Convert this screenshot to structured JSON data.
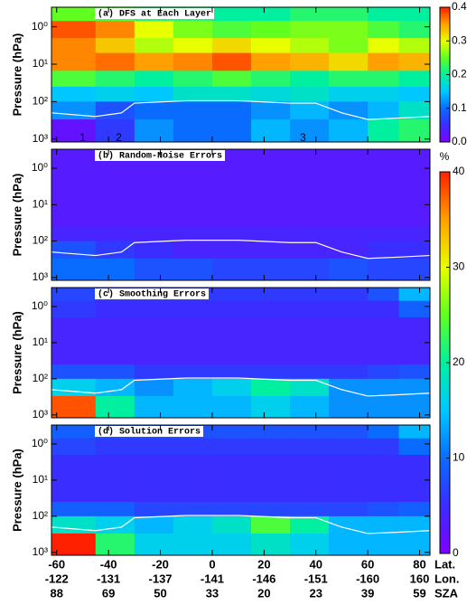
{
  "chart_data": [
    {
      "type": "heatmap",
      "title": "(a) DFS at Each Layer",
      "ylabel": "Pressure (hPa)",
      "log_y": true,
      "ylim": [
        1200,
        0.3
      ],
      "yticks": [
        {
          "value": 1,
          "label": "10⁰"
        },
        {
          "value": 10,
          "label": "10¹"
        },
        {
          "value": 100,
          "label": "10²"
        },
        {
          "value": 1000,
          "label": "10³"
        }
      ],
      "zlim": [
        0,
        0.4
      ],
      "x_edges": [
        -62,
        -45,
        -30,
        -15,
        0,
        15,
        30,
        45,
        60,
        72,
        84
      ],
      "y_edges": [
        0.3,
        0.7,
        2,
        5,
        15,
        40,
        100,
        300,
        1200
      ],
      "values": [
        [
          0.25,
          0.24,
          0.22,
          0.22,
          0.2,
          0.2,
          0.22,
          0.22,
          0.2,
          0.2
        ],
        [
          0.38,
          0.36,
          0.3,
          0.26,
          0.24,
          0.25,
          0.26,
          0.26,
          0.24,
          0.22
        ],
        [
          0.36,
          0.33,
          0.28,
          0.3,
          0.32,
          0.3,
          0.28,
          0.26,
          0.3,
          0.28
        ],
        [
          0.36,
          0.37,
          0.35,
          0.36,
          0.38,
          0.35,
          0.34,
          0.32,
          0.35,
          0.34
        ],
        [
          0.24,
          0.22,
          0.2,
          0.22,
          0.24,
          0.22,
          0.2,
          0.22,
          0.22,
          0.2
        ],
        [
          0.15,
          0.16,
          0.15,
          0.18,
          0.18,
          0.17,
          0.18,
          0.16,
          0.16,
          0.15
        ],
        [
          0.12,
          0.08,
          0.1,
          0.1,
          0.1,
          0.12,
          0.14,
          0.12,
          0.14,
          0.18
        ],
        [
          0.02,
          0.06,
          0.12,
          0.1,
          0.1,
          0.14,
          0.12,
          0.14,
          0.2,
          0.22
        ]
      ],
      "line": {
        "color": "#ffffff",
        "x": [
          -62,
          -45,
          -35,
          -30,
          -10,
          10,
          30,
          40,
          50,
          60,
          70,
          84
        ],
        "values": [
          200,
          250,
          200,
          110,
          95,
          95,
          110,
          110,
          200,
          300,
          280,
          250
        ]
      },
      "annotations": [
        {
          "text": "1",
          "x": -50,
          "y": 950
        },
        {
          "text": "2",
          "x": -36,
          "y": 950
        },
        {
          "text": "3",
          "x": 35,
          "y": 950
        }
      ],
      "colorbar": {
        "zticks": [
          {
            "value": 0,
            "label": "0.0"
          },
          {
            "value": 0.1,
            "label": "0.1"
          },
          {
            "value": 0.2,
            "label": "0.2"
          },
          {
            "value": 0.3,
            "label": "0.3"
          },
          {
            "value": 0.4,
            "label": "0.4"
          }
        ]
      }
    },
    {
      "type": "heatmap",
      "title": "(b) Random-Noise Errors",
      "ylabel": "Pressure (hPa)",
      "log_y": true,
      "ylim": [
        1200,
        0.3
      ],
      "yticks": [
        {
          "value": 1,
          "label": "10⁰"
        },
        {
          "value": 10,
          "label": "10¹"
        },
        {
          "value": 100,
          "label": "10²"
        },
        {
          "value": 1000,
          "label": "10³"
        }
      ],
      "zlim": [
        0,
        40
      ],
      "x_edges": [
        -62,
        -45,
        -30,
        -15,
        0,
        15,
        30,
        45,
        60,
        72,
        84
      ],
      "y_edges": [
        0.3,
        0.7,
        2,
        5,
        15,
        40,
        100,
        300,
        1200
      ],
      "values": [
        [
          3,
          3,
          3,
          3,
          3,
          3,
          3,
          3,
          3,
          3
        ],
        [
          3,
          3,
          3,
          3,
          3,
          3,
          3,
          3,
          3,
          3
        ],
        [
          3,
          3,
          3,
          3,
          3,
          3,
          3,
          3,
          3,
          3
        ],
        [
          3,
          3,
          3,
          3,
          3,
          3,
          3,
          3,
          3,
          3
        ],
        [
          3,
          3,
          3,
          3,
          3,
          3,
          3,
          3,
          3,
          3
        ],
        [
          4,
          4,
          4,
          4,
          4,
          4,
          4,
          4,
          4,
          4
        ],
        [
          8,
          6,
          5,
          4,
          4,
          4,
          4,
          4,
          5,
          5
        ],
        [
          10,
          10,
          8,
          8,
          7,
          7,
          7,
          8,
          7,
          7
        ]
      ],
      "line": {
        "color": "#ffffff",
        "x": [
          -62,
          -45,
          -35,
          -30,
          -10,
          10,
          30,
          40,
          50,
          60,
          70,
          84
        ],
        "values": [
          200,
          250,
          200,
          110,
          95,
          95,
          110,
          110,
          200,
          300,
          280,
          250
        ]
      }
    },
    {
      "type": "heatmap",
      "title": "(c) Smoothing Errors",
      "ylabel": "Pressure (hPa)",
      "log_y": true,
      "ylim": [
        1200,
        0.3
      ],
      "yticks": [
        {
          "value": 1,
          "label": "10⁰"
        },
        {
          "value": 10,
          "label": "10¹"
        },
        {
          "value": 100,
          "label": "10²"
        },
        {
          "value": 1000,
          "label": "10³"
        }
      ],
      "zlim": [
        0,
        40
      ],
      "x_edges": [
        -62,
        -45,
        -30,
        -15,
        0,
        15,
        30,
        45,
        60,
        72,
        84
      ],
      "y_edges": [
        0.3,
        0.7,
        2,
        5,
        15,
        40,
        100,
        300,
        1200
      ],
      "values": [
        [
          7,
          6,
          6,
          6,
          6,
          6,
          6,
          6,
          8,
          14
        ],
        [
          6,
          5,
          5,
          5,
          5,
          5,
          5,
          5,
          5,
          9
        ],
        [
          4,
          4,
          4,
          4,
          4,
          4,
          4,
          4,
          4,
          4
        ],
        [
          4,
          4,
          4,
          4,
          4,
          4,
          4,
          4,
          4,
          4
        ],
        [
          4,
          4,
          4,
          4,
          4,
          4,
          4,
          4,
          4,
          4
        ],
        [
          8,
          8,
          6,
          6,
          6,
          6,
          6,
          6,
          7,
          8
        ],
        [
          16,
          14,
          12,
          14,
          16,
          20,
          18,
          12,
          12,
          12
        ],
        [
          38,
          20,
          14,
          14,
          14,
          16,
          14,
          12,
          12,
          12
        ]
      ],
      "line": {
        "color": "#ffffff",
        "x": [
          -62,
          -45,
          -35,
          -30,
          -10,
          10,
          30,
          40,
          50,
          60,
          70,
          84
        ],
        "values": [
          200,
          250,
          200,
          110,
          95,
          95,
          110,
          110,
          200,
          300,
          280,
          250
        ]
      }
    },
    {
      "type": "heatmap",
      "title": "(d) Solution Errors",
      "ylabel": "Pressure (hPa)",
      "log_y": true,
      "ylim": [
        1200,
        0.3
      ],
      "yticks": [
        {
          "value": 1,
          "label": "10⁰"
        },
        {
          "value": 10,
          "label": "10¹"
        },
        {
          "value": 100,
          "label": "10²"
        },
        {
          "value": 1000,
          "label": "10³"
        }
      ],
      "zlim": [
        0,
        40
      ],
      "x_edges": [
        -62,
        -45,
        -30,
        -15,
        0,
        15,
        30,
        45,
        60,
        72,
        84
      ],
      "y_edges": [
        0.3,
        0.7,
        2,
        5,
        15,
        40,
        100,
        300,
        1200
      ],
      "values": [
        [
          9,
          8,
          8,
          8,
          8,
          8,
          8,
          8,
          10,
          14
        ],
        [
          7,
          6,
          6,
          6,
          6,
          6,
          6,
          6,
          6,
          10
        ],
        [
          5,
          5,
          5,
          5,
          5,
          5,
          5,
          5,
          5,
          5
        ],
        [
          5,
          5,
          5,
          5,
          5,
          5,
          5,
          5,
          5,
          5
        ],
        [
          5,
          5,
          5,
          5,
          5,
          5,
          5,
          5,
          5,
          5
        ],
        [
          9,
          9,
          7,
          7,
          7,
          7,
          7,
          7,
          8,
          9
        ],
        [
          18,
          16,
          14,
          16,
          18,
          24,
          20,
          14,
          14,
          14
        ],
        [
          40,
          22,
          16,
          16,
          16,
          18,
          16,
          14,
          14,
          14
        ]
      ],
      "line": {
        "color": "#ffffff",
        "x": [
          -62,
          -45,
          -35,
          -30,
          -10,
          10,
          30,
          40,
          50,
          60,
          70,
          84
        ],
        "values": [
          200,
          250,
          200,
          110,
          95,
          95,
          110,
          110,
          200,
          300,
          280,
          250
        ]
      }
    }
  ],
  "x_axis": {
    "xlim": [
      -62,
      84
    ],
    "names": [
      "Lat.",
      "Lon.",
      "SZA"
    ],
    "lat": [
      -60,
      -40,
      -20,
      0,
      20,
      40,
      60,
      80
    ],
    "lon": [
      -122,
      -131,
      -137,
      -141,
      -146,
      -151,
      -160,
      160
    ],
    "sza": [
      88,
      69,
      50,
      33,
      20,
      23,
      39,
      59
    ]
  },
  "colorbar2": {
    "label": "%",
    "zlim": [
      0,
      40
    ],
    "zticks": [
      0,
      10,
      20,
      30,
      40
    ]
  },
  "colormap": [
    "#7f00ff",
    "#3a2dff",
    "#0a6cff",
    "#00c8ff",
    "#00f0a0",
    "#60ff20",
    "#e8ff00",
    "#ffa000",
    "#ff2000"
  ]
}
